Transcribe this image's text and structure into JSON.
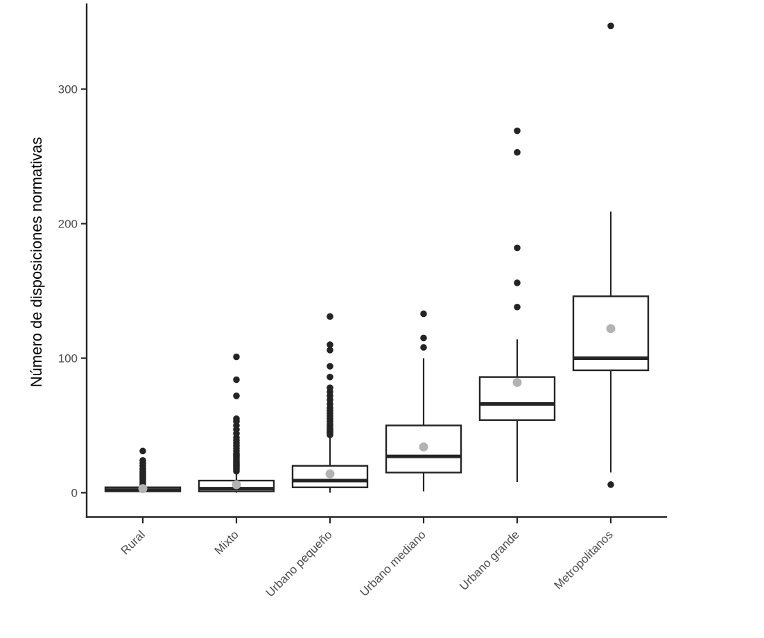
{
  "figure": {
    "background": "#ffffff",
    "ink_color": "#242424",
    "box_fill": "#ffffff",
    "mean_color": "#b3b3b3",
    "tick_text_color": "#4d4d4d",
    "axis_title_color": "#000000"
  },
  "chart_data": {
    "type": "boxplot",
    "title": "",
    "xlabel": "",
    "ylabel": "Número de disposiciones normativas",
    "y_ticks": [
      0,
      100,
      200,
      300
    ],
    "ylim": [
      -17,
      364
    ],
    "grid": false,
    "legend": false,
    "notes": "grey dot marks group mean; black dots are outliers",
    "categories": [
      "Rural",
      "Mixto",
      "Urbano pequeño",
      "Urbano mediano",
      "Urbano grande",
      "Metropolitanos"
    ],
    "series": [
      {
        "category": "Rural",
        "whisker_low": 0,
        "q1": 1,
        "median": 2,
        "q3": 4,
        "whisker_high": 5,
        "mean": 3,
        "outliers": [
          5,
          6,
          7,
          8,
          9,
          10,
          11,
          12,
          13,
          14,
          15,
          16,
          17,
          18,
          20,
          22,
          24,
          31
        ]
      },
      {
        "category": "Mixto",
        "whisker_low": 0,
        "q1": 1,
        "median": 3,
        "q3": 9,
        "whisker_high": 15,
        "mean": 6,
        "outliers": [
          16,
          17,
          18,
          19,
          20,
          21,
          22,
          23,
          24,
          25,
          26,
          27,
          28,
          29,
          31,
          33,
          35,
          37,
          39,
          41,
          44,
          47,
          50,
          53,
          55,
          72,
          84,
          101
        ]
      },
      {
        "category": "Urbano pequeño",
        "whisker_low": 0,
        "q1": 4,
        "median": 9,
        "q3": 20,
        "whisker_high": 42,
        "mean": 14,
        "outliers": [
          43,
          44,
          45,
          46,
          47,
          48,
          50,
          51,
          53,
          55,
          57,
          59,
          61,
          63,
          66,
          69,
          72,
          75,
          78,
          86,
          94,
          106,
          110,
          131
        ]
      },
      {
        "category": "Urbano mediano",
        "whisker_low": 1,
        "q1": 15,
        "median": 27,
        "q3": 50,
        "whisker_high": 100,
        "mean": 34,
        "outliers": [
          108,
          115,
          133
        ]
      },
      {
        "category": "Urbano grande",
        "whisker_low": 8,
        "q1": 54,
        "median": 66,
        "q3": 86,
        "whisker_high": 114,
        "mean": 82,
        "outliers": [
          138,
          156,
          182,
          253,
          269
        ]
      },
      {
        "category": "Metropolitanos",
        "whisker_low": 15,
        "q1": 91,
        "median": 100,
        "q3": 146,
        "whisker_high": 209,
        "mean": 122,
        "outliers": [
          6,
          347
        ]
      }
    ]
  }
}
